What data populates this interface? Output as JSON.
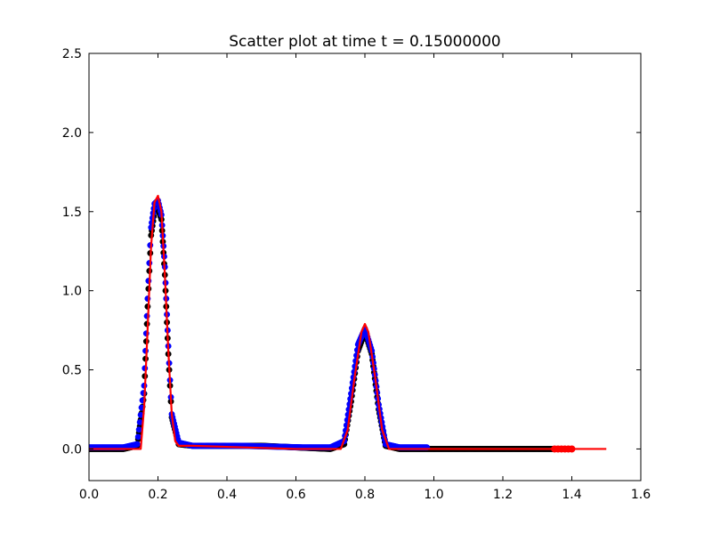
{
  "chart_data": {
    "type": "scatter",
    "title": "Scatter plot at time t =     0.15000000",
    "xlabel": "",
    "ylabel": "",
    "xlim": [
      0.0,
      1.6
    ],
    "ylim": [
      -0.2,
      2.5
    ],
    "xticks": [
      "0.0",
      "0.2",
      "0.4",
      "0.6",
      "0.8",
      "1.0",
      "1.2",
      "1.4",
      "1.6"
    ],
    "yticks": [
      "0.0",
      "0.5",
      "1.0",
      "1.5",
      "2.0",
      "2.5"
    ],
    "grid": false,
    "legend": "none",
    "series": [
      {
        "kind": "scatter",
        "color": "#000000",
        "x": [
          0.0,
          0.1,
          0.14,
          0.16,
          0.17,
          0.18,
          0.19,
          0.2,
          0.21,
          0.22,
          0.23,
          0.24,
          0.26,
          0.3,
          0.4,
          0.5,
          0.6,
          0.7,
          0.74,
          0.76,
          0.78,
          0.8,
          0.82,
          0.84,
          0.86,
          0.9,
          1.0,
          1.1,
          1.2,
          1.3,
          1.35
        ],
        "y": [
          0.0,
          0.0,
          0.02,
          0.35,
          0.9,
          1.35,
          1.5,
          1.52,
          1.45,
          1.1,
          0.6,
          0.2,
          0.03,
          0.02,
          0.02,
          0.02,
          0.01,
          0.0,
          0.03,
          0.3,
          0.62,
          0.74,
          0.6,
          0.25,
          0.02,
          0.0,
          0.0,
          0.0,
          0.0,
          0.0,
          0.0
        ]
      },
      {
        "kind": "scatter",
        "color": "#0000ff",
        "x": [
          0.0,
          0.1,
          0.14,
          0.16,
          0.17,
          0.18,
          0.19,
          0.2,
          0.21,
          0.22,
          0.23,
          0.24,
          0.26,
          0.3,
          0.4,
          0.44,
          0.62,
          0.7,
          0.74,
          0.76,
          0.78,
          0.8,
          0.82,
          0.84,
          0.86,
          0.9,
          0.98
        ],
        "y": [
          0.01,
          0.01,
          0.03,
          0.4,
          0.95,
          1.4,
          1.55,
          1.57,
          1.48,
          1.15,
          0.65,
          0.22,
          0.04,
          0.02,
          0.02,
          0.02,
          0.01,
          0.01,
          0.05,
          0.35,
          0.66,
          0.76,
          0.62,
          0.28,
          0.03,
          0.01,
          0.01
        ]
      },
      {
        "kind": "line",
        "color": "#ff0000",
        "x": [
          0.0,
          0.15,
          0.16,
          0.17,
          0.18,
          0.19,
          0.2,
          0.21,
          0.22,
          0.23,
          0.24,
          0.25,
          0.26,
          0.3,
          0.6,
          0.73,
          0.75,
          0.77,
          0.79,
          0.8,
          0.81,
          0.83,
          0.85,
          0.87,
          0.9,
          1.2,
          1.5
        ],
        "y": [
          0.0,
          0.0,
          0.27,
          0.76,
          1.28,
          1.56,
          1.6,
          1.5,
          1.1,
          0.62,
          0.22,
          0.05,
          0.02,
          0.02,
          0.0,
          0.0,
          0.12,
          0.45,
          0.74,
          0.79,
          0.74,
          0.45,
          0.12,
          0.0,
          0.0,
          0.0,
          0.0
        ]
      },
      {
        "kind": "scatter",
        "color": "#ff0000",
        "x": [
          1.35,
          1.36,
          1.37,
          1.38,
          1.39,
          1.4
        ],
        "y": [
          0.0,
          0.0,
          0.0,
          0.0,
          0.0,
          0.0
        ]
      }
    ]
  }
}
